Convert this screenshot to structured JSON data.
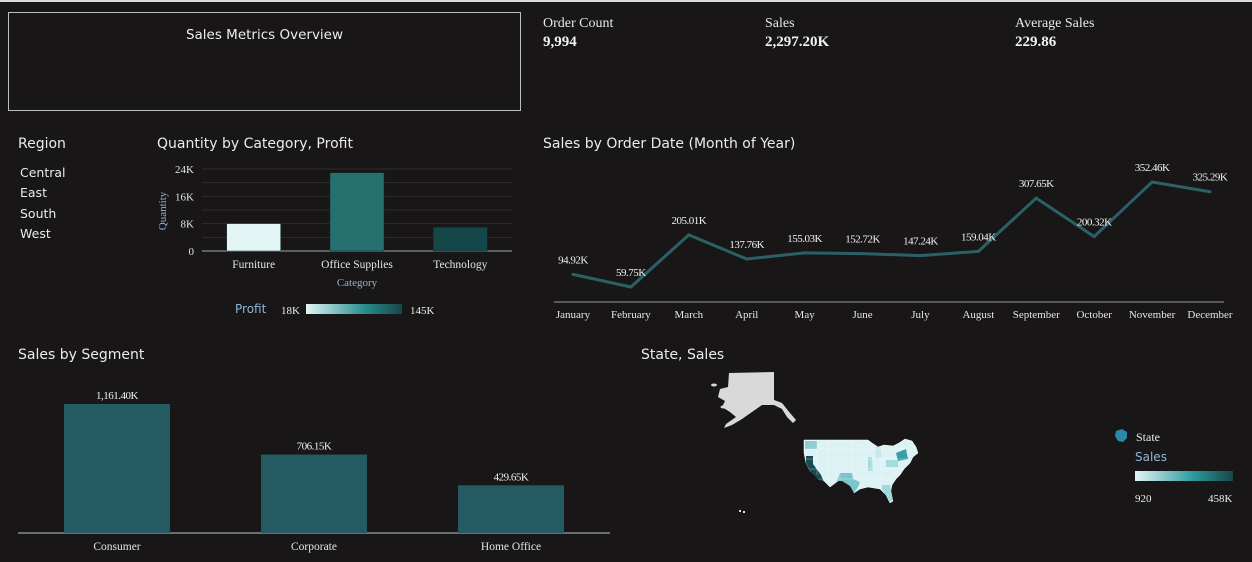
{
  "header": {
    "title": "Sales Metrics Overview"
  },
  "kpis": [
    {
      "label": "Order Count",
      "value": "9,994"
    },
    {
      "label": "Sales",
      "value": "2,297.20K"
    },
    {
      "label": "Average Sales",
      "value": "229.86"
    }
  ],
  "region_filter": {
    "title": "Region",
    "items": [
      "Central",
      "East",
      "South",
      "West"
    ]
  },
  "colors": {
    "background": "#181617",
    "line": "#2b6166",
    "segment_bar": "#245b63",
    "gradient_low": "#e3f5f5",
    "gradient_mid": "#2a8e8e",
    "gradient_high": "#164748",
    "axis_label": "#8fb6d8",
    "alaska": "#d9d9d9"
  },
  "chart_data": [
    {
      "id": "quantity_by_category",
      "type": "bar",
      "title": "Quantity by Category, Profit",
      "xlabel": "Category",
      "ylabel": "Quantity",
      "categories": [
        "Furniture",
        "Office Supplies",
        "Technology"
      ],
      "values": [
        8028,
        22906,
        6939
      ],
      "color_values": [
        18451,
        122491,
        145455
      ],
      "ylim": [
        0,
        24000
      ],
      "yticks": [
        "0",
        "8K",
        "16K",
        "24K"
      ],
      "grid": true,
      "color_legend": {
        "label": "Profit",
        "min": "18K",
        "max": "145K"
      }
    },
    {
      "id": "sales_by_month",
      "type": "line",
      "title": "Sales by Order Date (Month of Year)",
      "categories": [
        "January",
        "February",
        "March",
        "April",
        "May",
        "June",
        "July",
        "August",
        "September",
        "October",
        "November",
        "December"
      ],
      "values": [
        94.92,
        59.75,
        205.01,
        137.76,
        155.03,
        152.72,
        147.24,
        159.04,
        307.65,
        200.32,
        352.46,
        325.29
      ],
      "labels": [
        "94.92K",
        "59.75K",
        "205.01K",
        "137.76K",
        "155.03K",
        "152.72K",
        "147.24K",
        "159.04K",
        "307.65K",
        "200.32K",
        "352.46K",
        "325.29K"
      ],
      "unit": "K",
      "ylim": [
        0,
        400
      ]
    },
    {
      "id": "sales_by_segment",
      "type": "bar",
      "title": "Sales by Segment",
      "categories": [
        "Consumer",
        "Corporate",
        "Home Office"
      ],
      "values": [
        1161.4,
        706.15,
        429.65
      ],
      "labels": [
        "1,161.40K",
        "706.15K",
        "429.65K"
      ],
      "unit": "K",
      "ylim": [
        0,
        1300
      ]
    },
    {
      "id": "state_sales_map",
      "type": "map",
      "title": "State, Sales",
      "legend": {
        "shape_label": "State",
        "color_label": "Sales",
        "min": "920",
        "max": "458K"
      }
    }
  ]
}
